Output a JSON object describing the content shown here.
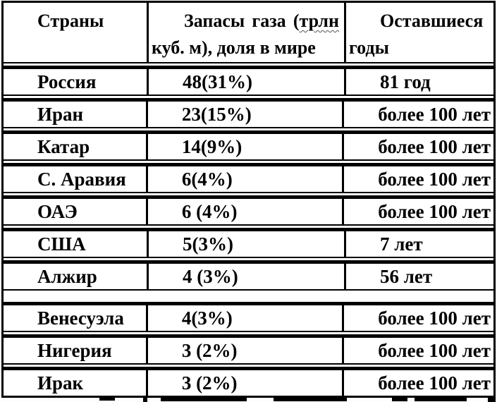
{
  "colors": {
    "border": "#000000",
    "background": "#ffffff",
    "text": "#000000"
  },
  "table": {
    "header": {
      "col1": "Страны",
      "col2_full": "Запасы газа (трлн куб. м), доля в мире",
      "col2_line1_word1": "Запасы",
      "col2_line1_word2": "газа",
      "col2_line1_paren": "(",
      "col2_line1_word3": "трлн",
      "col2_line2": "куб. м), доля в мире",
      "col3_full": "Оставшиеся годы",
      "col3_line1": "Оставшиеся",
      "col3_line2": "годы"
    },
    "rows": [
      {
        "country": "Россия",
        "reserves": "48(31%)",
        "years": "81 год"
      },
      {
        "country": "Иран",
        "reserves": "23(15%)",
        "years": "более 100 лет"
      },
      {
        "country": "Катар",
        "reserves": "14(9%)",
        "years": "более 100 лет"
      },
      {
        "country": "С. Аравия",
        "reserves": "6(4%)",
        "years": "более 100 лет"
      },
      {
        "country": "ОАЭ",
        "reserves": "6 (4%)",
        "years": "более 100 лет"
      },
      {
        "country": "США",
        "reserves": "5(3%)",
        "years": "7 лет"
      },
      {
        "country": "Алжир",
        "reserves": "4 (3%)",
        "years": "56 лет"
      },
      {
        "country": "Венесуэла",
        "reserves": "4(3%)",
        "years": "более 100 лет"
      },
      {
        "country": "Нигерия",
        "reserves": "3 (2%)",
        "years": "более 100 лет"
      },
      {
        "country": "Ирак",
        "reserves": "3 (2%)",
        "years": "более 100 лет"
      }
    ]
  },
  "chart_data": {
    "type": "table",
    "columns": [
      "Страны",
      "Запасы газа (трлн куб. м), доля в мире",
      "Оставшиеся годы"
    ],
    "rows": [
      {
        "country": "Россия",
        "reserves_text": "48(31%)",
        "reserves_trln_m3": 48,
        "world_share_pct": 31,
        "years_text": "81 год"
      },
      {
        "country": "Иран",
        "reserves_text": "23(15%)",
        "reserves_trln_m3": 23,
        "world_share_pct": 15,
        "years_text": "более 100 лет"
      },
      {
        "country": "Катар",
        "reserves_text": "14(9%)",
        "reserves_trln_m3": 14,
        "world_share_pct": 9,
        "years_text": "более 100 лет"
      },
      {
        "country": "С. Аравия",
        "reserves_text": "6(4%)",
        "reserves_trln_m3": 6,
        "world_share_pct": 4,
        "years_text": "более 100 лет"
      },
      {
        "country": "ОАЭ",
        "reserves_text": "6 (4%)",
        "reserves_trln_m3": 6,
        "world_share_pct": 4,
        "years_text": "более 100 лет"
      },
      {
        "country": "США",
        "reserves_text": "5(3%)",
        "reserves_trln_m3": 5,
        "world_share_pct": 3,
        "years_text": "7 лет"
      },
      {
        "country": "Алжир",
        "reserves_text": "4 (3%)",
        "reserves_trln_m3": 4,
        "world_share_pct": 3,
        "years_text": "56 лет"
      },
      {
        "country": "Венесуэла",
        "reserves_text": "4(3%)",
        "reserves_trln_m3": 4,
        "world_share_pct": 3,
        "years_text": "более 100 лет"
      },
      {
        "country": "Нигерия",
        "reserves_text": "3 (2%)",
        "reserves_trln_m3": 3,
        "world_share_pct": 2,
        "years_text": "более 100 лет"
      },
      {
        "country": "Ирак",
        "reserves_text": "3 (2%)",
        "reserves_trln_m3": 3,
        "world_share_pct": 2,
        "years_text": "более 100 лет"
      }
    ]
  }
}
